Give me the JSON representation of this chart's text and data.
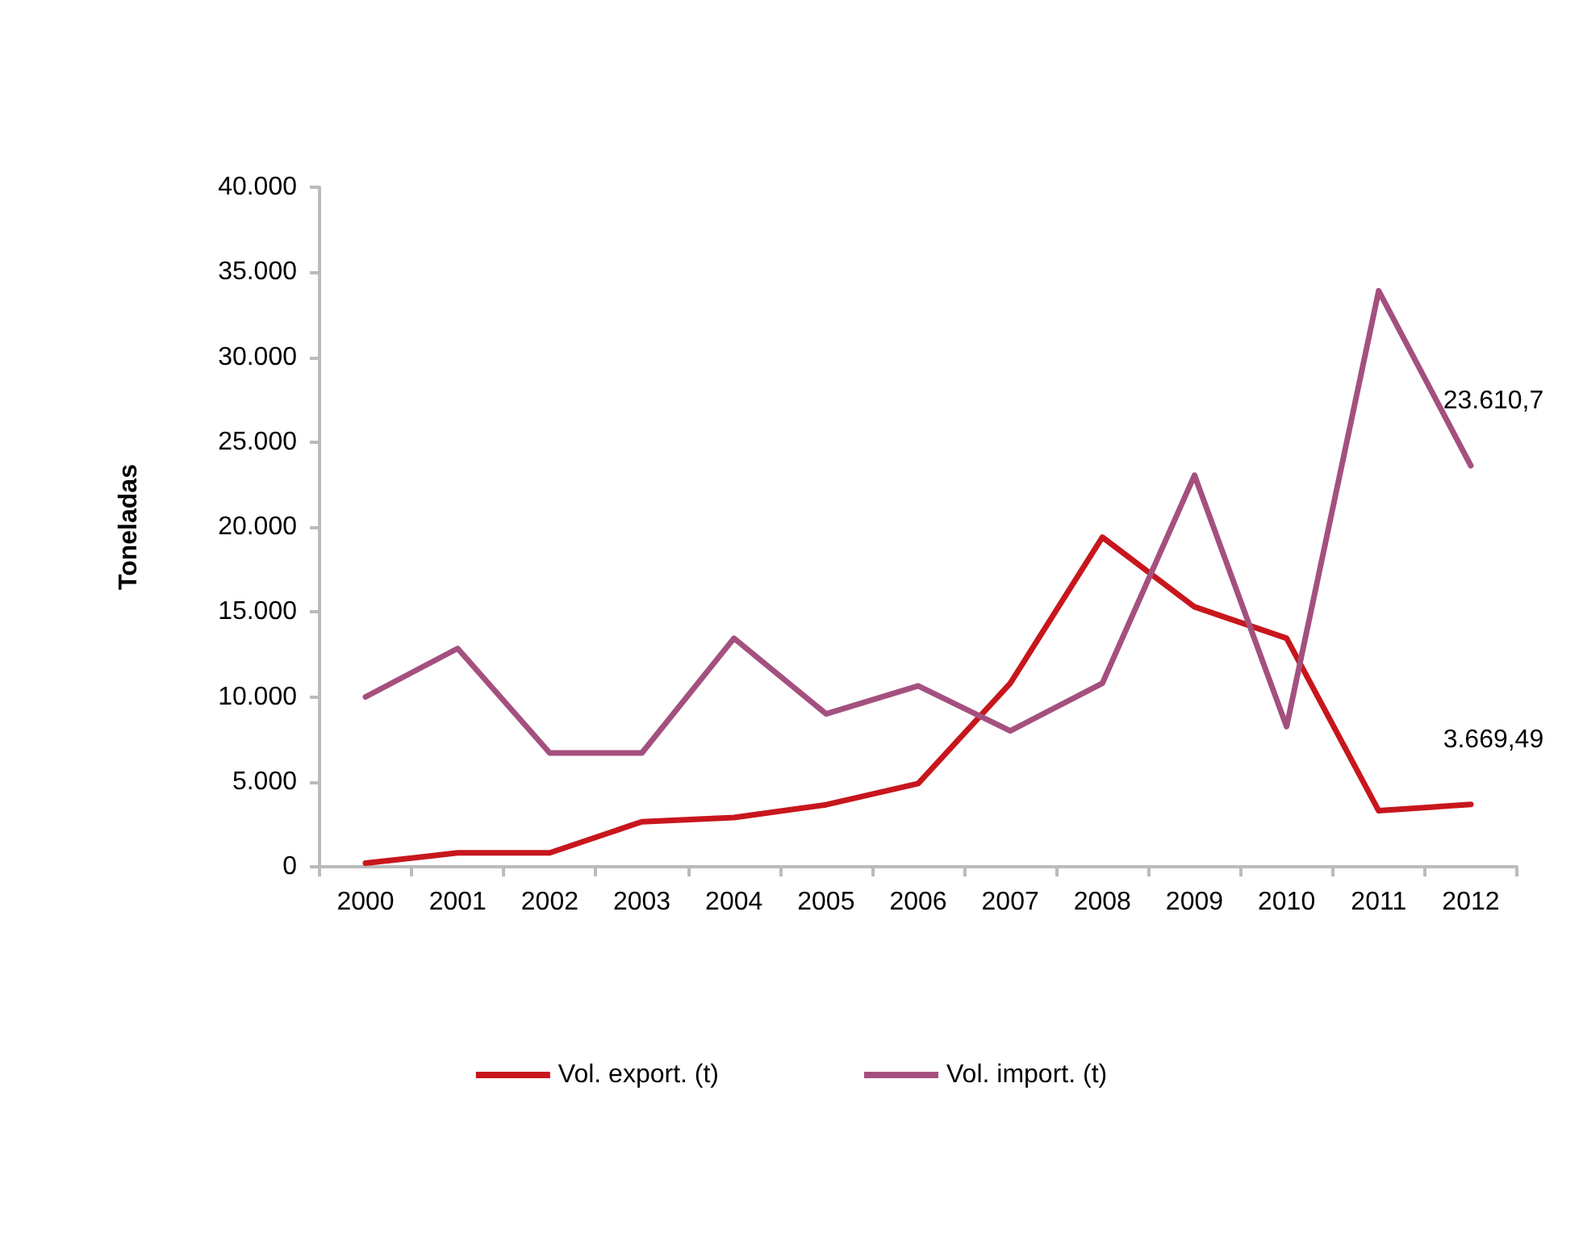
{
  "chart_data": {
    "type": "line",
    "ylabel": "Toneladas",
    "categories": [
      "2000",
      "2001",
      "2002",
      "2003",
      "2004",
      "2005",
      "2006",
      "2007",
      "2008",
      "2009",
      "2010",
      "2011",
      "2012"
    ],
    "series": [
      {
        "name": "Vol. export. (t)",
        "color": "#c8161d",
        "values": [
          210,
          820,
          820,
          2650,
          2900,
          3650,
          4900,
          10800,
          19400,
          15300,
          13450,
          3300,
          3669.49
        ],
        "value_labels": [
          null,
          null,
          null,
          null,
          null,
          null,
          null,
          null,
          null,
          null,
          null,
          null,
          "3.669,49"
        ]
      },
      {
        "name": "Vol. import. (t)",
        "color": "#a4507f",
        "values": [
          10000,
          12850,
          6700,
          6700,
          13450,
          9000,
          10650,
          8000,
          10800,
          23050,
          8250,
          33900,
          23610.7
        ],
        "value_labels": [
          null,
          null,
          null,
          null,
          null,
          null,
          null,
          null,
          null,
          null,
          null,
          null,
          "23.610,7"
        ]
      }
    ],
    "ylim": [
      0,
      40000
    ],
    "yticks": [
      0,
      {
        "value": 5000,
        "label": "5.000"
      },
      {
        "value": 10000,
        "label": "10.000"
      },
      {
        "value": 15000,
        "label": "15.000"
      },
      {
        "value": 20000,
        "label": "20.000"
      },
      {
        "value": 25000,
        "label": "25.000"
      },
      {
        "value": 30000,
        "label": "30.000"
      },
      {
        "value": 35000,
        "label": "35.000"
      },
      {
        "value": 40000,
        "label": "40.000"
      }
    ],
    "grid": false,
    "legend": "bottom",
    "marker": "none",
    "line_style": "solid"
  }
}
